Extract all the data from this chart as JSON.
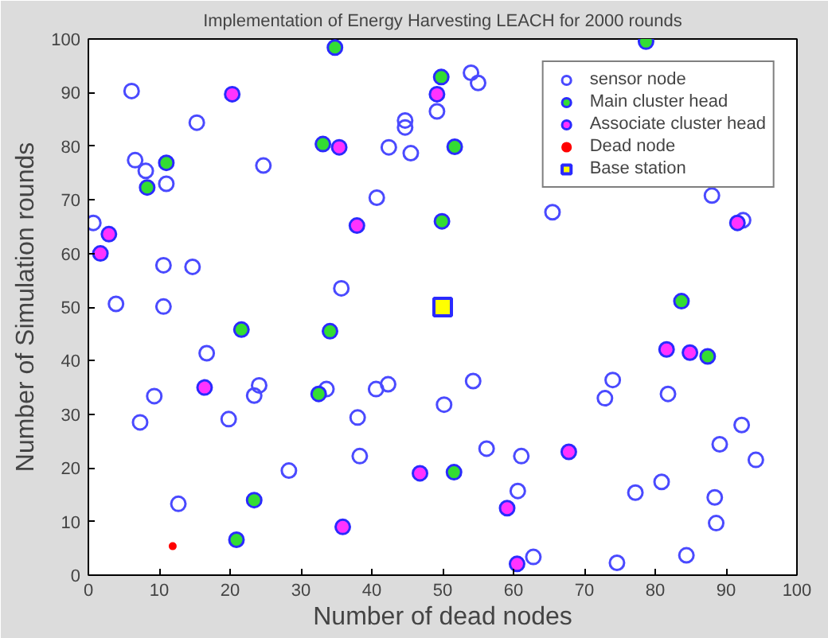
{
  "chart_data": {
    "type": "scatter",
    "title": "Implementation of Energy Harvesting LEACH for 2000 rounds",
    "xlabel": "Number of dead nodes",
    "ylabel": "Number of Simulation rounds",
    "xlim": [
      0,
      100
    ],
    "ylim": [
      0,
      100
    ],
    "xticks": [
      0,
      10,
      20,
      30,
      40,
      50,
      60,
      70,
      80,
      90,
      100
    ],
    "yticks": [
      0,
      10,
      20,
      30,
      40,
      50,
      60,
      70,
      80,
      90,
      100
    ],
    "grid": false,
    "legend": "top right",
    "series": [
      {
        "name": "sensor node",
        "color": "#4a4aff",
        "marker": "circle",
        "x": [
          6.1,
          49.2,
          15.3,
          44.7,
          44.7,
          42.4,
          45.5,
          6.6,
          8.1,
          11.0,
          24.7,
          40.7,
          0.7,
          10.6,
          14.7,
          35.7,
          3.9,
          10.6,
          54.0,
          55.0,
          65.5,
          88.0,
          92.4,
          16.7,
          9.3,
          7.3,
          19.8,
          23.4,
          24.1,
          33.6,
          38.0,
          40.6,
          42.3,
          38.3,
          28.3,
          12.7,
          50.2,
          54.3,
          74.0,
          72.9,
          81.8,
          92.2,
          89.1,
          94.2,
          56.2,
          61.1,
          60.6,
          77.2,
          80.9,
          88.4,
          88.6,
          62.8,
          74.6,
          84.4
        ],
        "values": [
          90.3,
          86.5,
          84.4,
          84.8,
          83.5,
          79.8,
          78.7,
          77.4,
          75.4,
          73.0,
          76.4,
          70.4,
          65.7,
          57.8,
          57.5,
          53.5,
          50.6,
          50.1,
          93.7,
          91.8,
          67.7,
          70.8,
          66.2,
          41.4,
          33.4,
          28.5,
          29.1,
          33.5,
          35.4,
          34.7,
          29.4,
          34.7,
          35.6,
          22.2,
          19.5,
          13.3,
          31.8,
          36.2,
          36.4,
          33.0,
          33.8,
          28.0,
          24.4,
          21.5,
          23.6,
          22.2,
          15.7,
          15.4,
          17.4,
          14.5,
          9.7,
          3.4,
          2.3,
          3.7
        ]
      },
      {
        "name": "Main cluster head",
        "color": "#33dd33",
        "marker": "circle",
        "x": [
          34.8,
          49.8,
          33.1,
          11.0,
          8.3,
          49.9,
          51.7,
          83.7,
          78.7,
          21.6,
          34.1,
          32.5,
          23.4,
          20.9,
          87.4,
          51.6
        ],
        "values": [
          98.4,
          92.9,
          80.4,
          76.9,
          72.3,
          66.0,
          79.9,
          51.1,
          99.5,
          45.8,
          45.5,
          33.8,
          14.0,
          6.6,
          40.8,
          19.2
        ]
      },
      {
        "name": "Associate cluster head",
        "color": "#ff33ff",
        "marker": "circle",
        "x": [
          20.3,
          49.2,
          35.4,
          37.9,
          2.9,
          1.7,
          91.6,
          16.4,
          46.8,
          35.9,
          81.6,
          84.9,
          67.8,
          59.1,
          60.5
        ],
        "values": [
          89.7,
          89.7,
          79.8,
          65.2,
          63.6,
          60.0,
          65.7,
          35.0,
          19.0,
          9.0,
          42.1,
          41.5,
          23.0,
          12.5,
          2.1
        ]
      },
      {
        "name": "Dead node",
        "color": "#ff0000",
        "marker": "dot",
        "x": [
          11.9
        ],
        "values": [
          5.4
        ]
      },
      {
        "name": "Base station",
        "color": "#ffff00",
        "marker": "square",
        "x": [
          50
        ],
        "values": [
          50
        ]
      }
    ]
  }
}
